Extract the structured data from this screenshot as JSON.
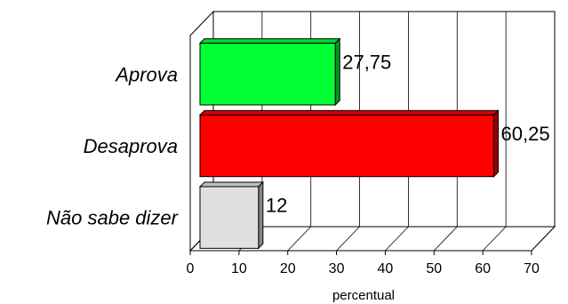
{
  "chart_data": {
    "type": "bar",
    "orientation": "horizontal",
    "three_d": true,
    "categories": [
      "Aprova",
      "Desaprova",
      "Não sabe dizer"
    ],
    "values": [
      27.75,
      60.25,
      12
    ],
    "value_labels": [
      "27,75",
      "60,25",
      "12"
    ],
    "colors": [
      "#00ff33",
      "#ff0000",
      "#e0e0e0"
    ],
    "title": "",
    "xlabel": "percentual",
    "ylabel": "",
    "xlim": [
      0,
      70
    ],
    "xticks": [
      0,
      10,
      20,
      30,
      40,
      50,
      60,
      70
    ],
    "xtick_labels": [
      "0",
      "10",
      "20",
      "30",
      "40",
      "50",
      "60",
      "70"
    ],
    "grid": true
  }
}
